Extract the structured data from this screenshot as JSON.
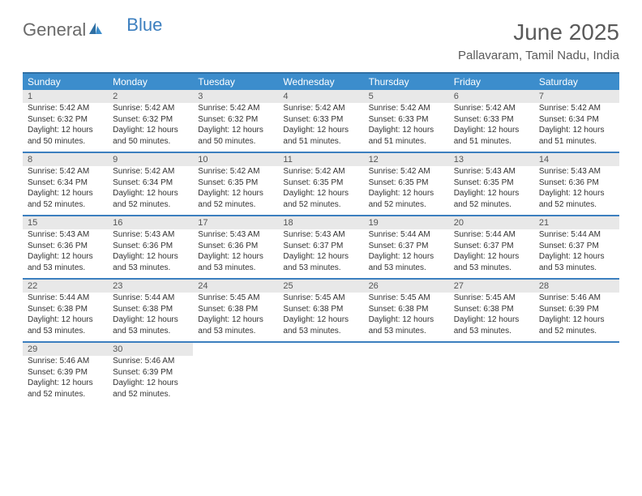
{
  "logo": {
    "text1": "General",
    "text2": "Blue"
  },
  "title": "June 2025",
  "location": "Pallavaram, Tamil Nadu, India",
  "colors": {
    "header_bg": "#3c8dcc",
    "header_text": "#ffffff",
    "divider": "#3c7fbf",
    "daynum_bg": "#e8e8e8",
    "body_text": "#333333",
    "title_text": "#5a5a5a"
  },
  "weekdays": [
    "Sunday",
    "Monday",
    "Tuesday",
    "Wednesday",
    "Thursday",
    "Friday",
    "Saturday"
  ],
  "weeks": [
    [
      {
        "n": "1",
        "sr": "5:42 AM",
        "ss": "6:32 PM",
        "dl": "12 hours and 50 minutes."
      },
      {
        "n": "2",
        "sr": "5:42 AM",
        "ss": "6:32 PM",
        "dl": "12 hours and 50 minutes."
      },
      {
        "n": "3",
        "sr": "5:42 AM",
        "ss": "6:32 PM",
        "dl": "12 hours and 50 minutes."
      },
      {
        "n": "4",
        "sr": "5:42 AM",
        "ss": "6:33 PM",
        "dl": "12 hours and 51 minutes."
      },
      {
        "n": "5",
        "sr": "5:42 AM",
        "ss": "6:33 PM",
        "dl": "12 hours and 51 minutes."
      },
      {
        "n": "6",
        "sr": "5:42 AM",
        "ss": "6:33 PM",
        "dl": "12 hours and 51 minutes."
      },
      {
        "n": "7",
        "sr": "5:42 AM",
        "ss": "6:34 PM",
        "dl": "12 hours and 51 minutes."
      }
    ],
    [
      {
        "n": "8",
        "sr": "5:42 AM",
        "ss": "6:34 PM",
        "dl": "12 hours and 52 minutes."
      },
      {
        "n": "9",
        "sr": "5:42 AM",
        "ss": "6:34 PM",
        "dl": "12 hours and 52 minutes."
      },
      {
        "n": "10",
        "sr": "5:42 AM",
        "ss": "6:35 PM",
        "dl": "12 hours and 52 minutes."
      },
      {
        "n": "11",
        "sr": "5:42 AM",
        "ss": "6:35 PM",
        "dl": "12 hours and 52 minutes."
      },
      {
        "n": "12",
        "sr": "5:42 AM",
        "ss": "6:35 PM",
        "dl": "12 hours and 52 minutes."
      },
      {
        "n": "13",
        "sr": "5:43 AM",
        "ss": "6:35 PM",
        "dl": "12 hours and 52 minutes."
      },
      {
        "n": "14",
        "sr": "5:43 AM",
        "ss": "6:36 PM",
        "dl": "12 hours and 52 minutes."
      }
    ],
    [
      {
        "n": "15",
        "sr": "5:43 AM",
        "ss": "6:36 PM",
        "dl": "12 hours and 53 minutes."
      },
      {
        "n": "16",
        "sr": "5:43 AM",
        "ss": "6:36 PM",
        "dl": "12 hours and 53 minutes."
      },
      {
        "n": "17",
        "sr": "5:43 AM",
        "ss": "6:36 PM",
        "dl": "12 hours and 53 minutes."
      },
      {
        "n": "18",
        "sr": "5:43 AM",
        "ss": "6:37 PM",
        "dl": "12 hours and 53 minutes."
      },
      {
        "n": "19",
        "sr": "5:44 AM",
        "ss": "6:37 PM",
        "dl": "12 hours and 53 minutes."
      },
      {
        "n": "20",
        "sr": "5:44 AM",
        "ss": "6:37 PM",
        "dl": "12 hours and 53 minutes."
      },
      {
        "n": "21",
        "sr": "5:44 AM",
        "ss": "6:37 PM",
        "dl": "12 hours and 53 minutes."
      }
    ],
    [
      {
        "n": "22",
        "sr": "5:44 AM",
        "ss": "6:38 PM",
        "dl": "12 hours and 53 minutes."
      },
      {
        "n": "23",
        "sr": "5:44 AM",
        "ss": "6:38 PM",
        "dl": "12 hours and 53 minutes."
      },
      {
        "n": "24",
        "sr": "5:45 AM",
        "ss": "6:38 PM",
        "dl": "12 hours and 53 minutes."
      },
      {
        "n": "25",
        "sr": "5:45 AM",
        "ss": "6:38 PM",
        "dl": "12 hours and 53 minutes."
      },
      {
        "n": "26",
        "sr": "5:45 AM",
        "ss": "6:38 PM",
        "dl": "12 hours and 53 minutes."
      },
      {
        "n": "27",
        "sr": "5:45 AM",
        "ss": "6:38 PM",
        "dl": "12 hours and 53 minutes."
      },
      {
        "n": "28",
        "sr": "5:46 AM",
        "ss": "6:39 PM",
        "dl": "12 hours and 52 minutes."
      }
    ],
    [
      {
        "n": "29",
        "sr": "5:46 AM",
        "ss": "6:39 PM",
        "dl": "12 hours and 52 minutes."
      },
      {
        "n": "30",
        "sr": "5:46 AM",
        "ss": "6:39 PM",
        "dl": "12 hours and 52 minutes."
      },
      null,
      null,
      null,
      null,
      null
    ]
  ],
  "labels": {
    "sunrise": "Sunrise:",
    "sunset": "Sunset:",
    "daylight": "Daylight:"
  }
}
